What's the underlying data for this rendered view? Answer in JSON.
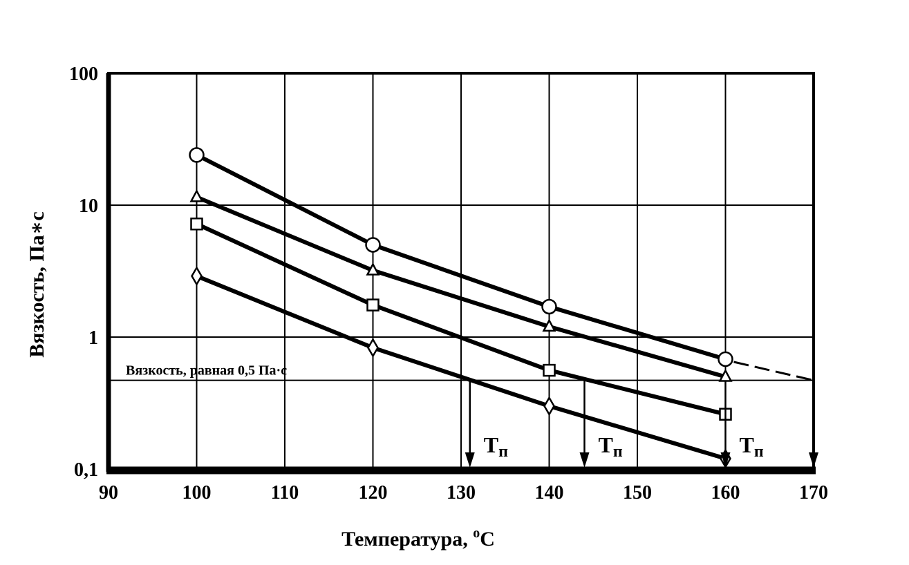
{
  "chart_data": {
    "type": "line",
    "xlabel": "Температура, ",
    "xlabel_unit_sup": "o",
    "xlabel_unit": "C",
    "ylabel": "Вязкость, Па∗с",
    "y_scale": "log",
    "xlim": [
      90,
      170
    ],
    "ylim": [
      0.1,
      100
    ],
    "x_ticks": [
      "90",
      "100",
      "110",
      "120",
      "130",
      "140",
      "150",
      "160",
      "170"
    ],
    "y_ticks": [
      "0,1",
      "1",
      "10",
      "100"
    ],
    "grid": true,
    "series": [
      {
        "marker": "circle",
        "x": [
          100,
          120,
          140,
          160
        ],
        "y": [
          24,
          5.0,
          1.7,
          0.68
        ]
      },
      {
        "marker": "triangle",
        "x": [
          100,
          120,
          140,
          160
        ],
        "y": [
          11.5,
          3.2,
          1.2,
          0.5
        ]
      },
      {
        "marker": "square",
        "x": [
          100,
          120,
          140,
          160
        ],
        "y": [
          7.2,
          1.75,
          0.56,
          0.26
        ]
      },
      {
        "marker": "diamond",
        "x": [
          100,
          120,
          140,
          160
        ],
        "y": [
          2.9,
          0.83,
          0.3,
          0.12
        ]
      }
    ],
    "extrapolation": {
      "x": [
        160,
        170
      ],
      "y": [
        0.68,
        0.47
      ]
    },
    "reference_line": {
      "y": 0.47,
      "label": "Вязкость, равная 0,5 Па·с"
    },
    "transition_markers": [
      {
        "x": 131,
        "label": "Т",
        "sub": "п"
      },
      {
        "x": 144,
        "label": "Т",
        "sub": "п"
      },
      {
        "x": 160,
        "label": "Т",
        "sub": "п"
      },
      {
        "x": 170,
        "label": "",
        "sub": ""
      }
    ]
  }
}
